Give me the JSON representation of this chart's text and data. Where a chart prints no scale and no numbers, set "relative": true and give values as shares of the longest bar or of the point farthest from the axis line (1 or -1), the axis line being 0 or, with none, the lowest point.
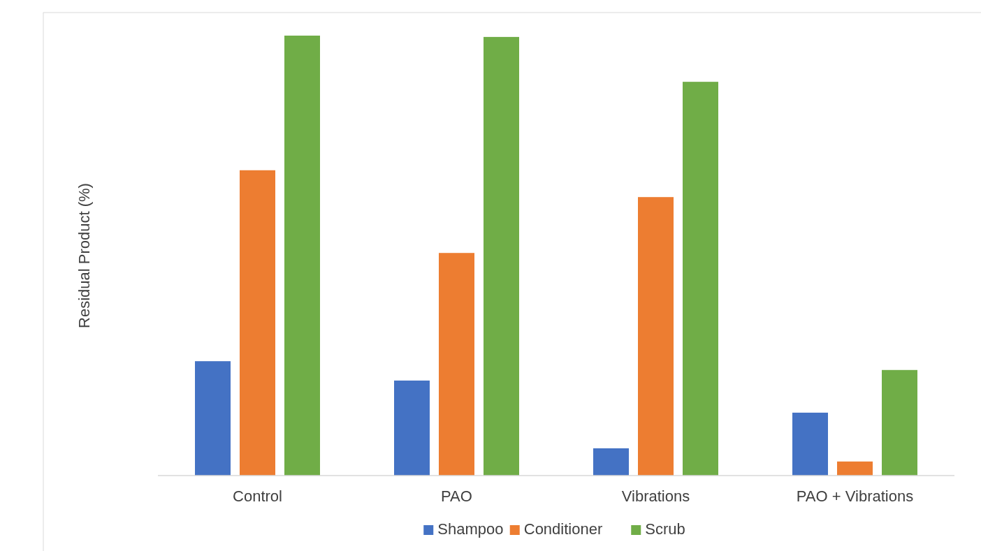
{
  "chart_data": {
    "type": "bar",
    "ylabel": "Residual Product (%)",
    "relative": true,
    "categories": [
      "Control",
      "PAO",
      "Vibrations",
      "PAO + Vibrations"
    ],
    "series": [
      {
        "name": "Shampoo",
        "color": "#4472c4",
        "values": [
          0.26,
          0.216,
          0.062,
          0.143
        ]
      },
      {
        "name": "Conditioner",
        "color": "#ed7d31",
        "values": [
          0.694,
          0.506,
          0.633,
          0.032
        ]
      },
      {
        "name": "Scrub",
        "color": "#70ad47",
        "values": [
          1,
          0.997,
          0.895,
          0.24
        ]
      }
    ],
    "legend": "bottom"
  }
}
